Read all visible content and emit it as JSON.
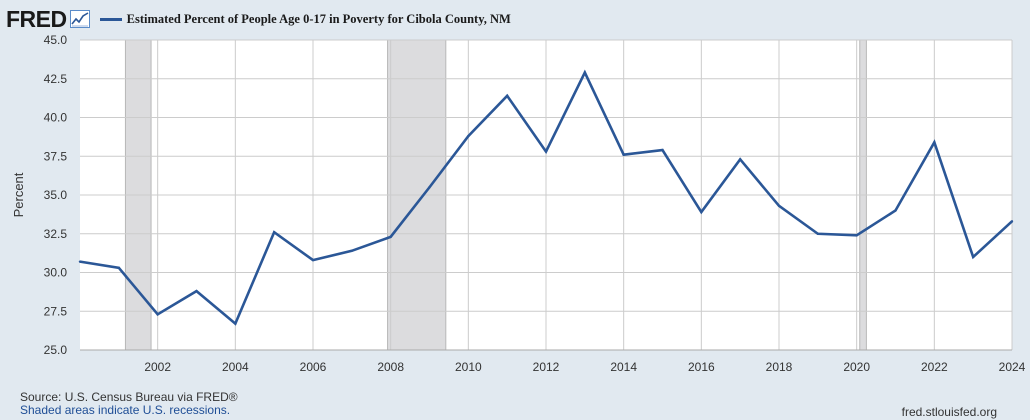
{
  "header": {
    "logo_text": "FRED",
    "logo_icon": "chart-line-icon",
    "series_title": "Estimated Percent of People Age 0-17 in Poverty for Cibola County, NM"
  },
  "chart_data": {
    "type": "line",
    "title": "Estimated Percent of People Age 0-17 in Poverty for Cibola County, NM",
    "xlabel": "",
    "ylabel": "Percent",
    "x": [
      2000,
      2001,
      2002,
      2003,
      2004,
      2005,
      2006,
      2007,
      2008,
      2009,
      2010,
      2011,
      2012,
      2013,
      2014,
      2015,
      2016,
      2017,
      2018,
      2019,
      2020,
      2021,
      2022,
      2023,
      2024
    ],
    "series": [
      {
        "name": "Estimated Percent of People Age 0-17 in Poverty for Cibola County, NM",
        "color": "#2b5797",
        "values": [
          30.7,
          30.3,
          27.3,
          28.8,
          26.7,
          32.6,
          30.8,
          31.4,
          32.3,
          35.5,
          38.8,
          41.4,
          37.8,
          42.9,
          37.6,
          37.9,
          33.9,
          37.3,
          34.3,
          32.5,
          32.4,
          34.0,
          38.4,
          31.0,
          33.3
        ]
      }
    ],
    "xlim": [
      2000,
      2024
    ],
    "ylim": [
      25.0,
      45.0
    ],
    "xticks": [
      "2002",
      "2004",
      "2006",
      "2008",
      "2010",
      "2012",
      "2014",
      "2016",
      "2018",
      "2020",
      "2022",
      "2024"
    ],
    "yticks": [
      "25.0",
      "27.5",
      "30.0",
      "32.5",
      "35.0",
      "37.5",
      "40.0",
      "42.5",
      "45.0"
    ],
    "recessions": [
      [
        2001.17,
        2001.83
      ],
      [
        2007.92,
        2009.42
      ],
      [
        2020.08,
        2020.25
      ]
    ],
    "grid": true,
    "legend_position": "top-left",
    "colors": {
      "line": "#2b5797",
      "recession": "#dcdcde",
      "plot_bg": "#ffffff",
      "page_bg": "#e1e9f0",
      "grid": "#cccccc"
    }
  },
  "footer": {
    "source": "Source: U.S. Census Bureau via FRED®",
    "shading_note": "Shaded areas indicate U.S. recessions.",
    "site": "fred.stlouisfed.org"
  }
}
